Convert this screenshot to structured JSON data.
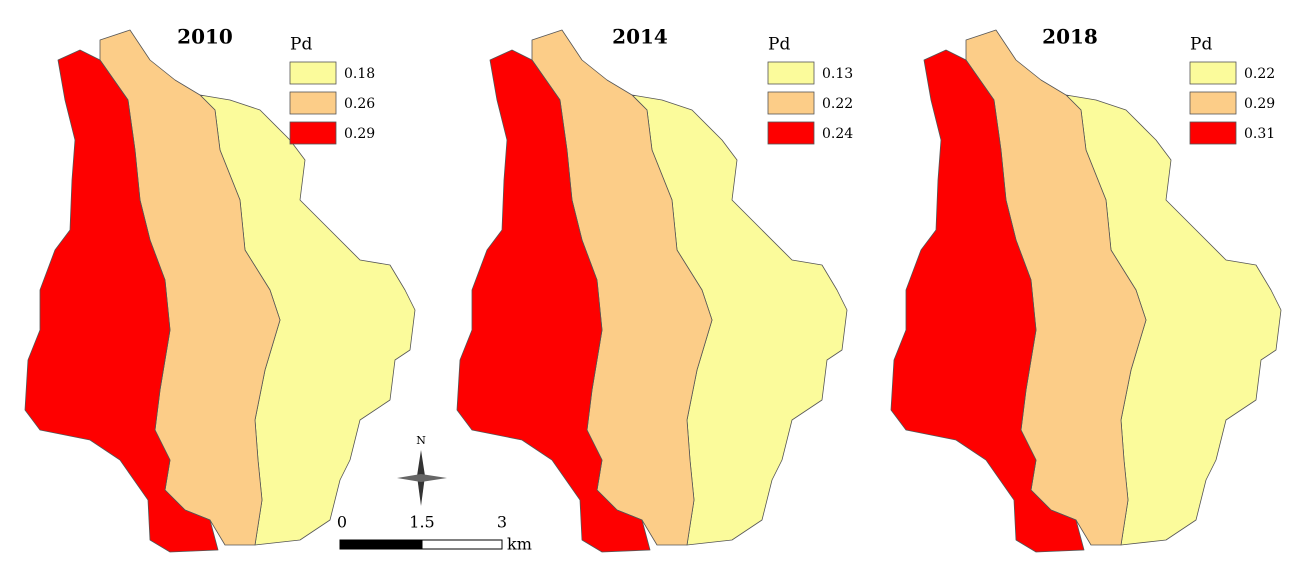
{
  "panels": [
    {
      "title": "2010",
      "legend": {
        "title": "Pd",
        "items": [
          {
            "label": "0.18",
            "color": "#fbfb9b"
          },
          {
            "label": "0.26",
            "color": "#fccd88"
          },
          {
            "label": "0.29",
            "color": "#fe0000"
          }
        ]
      }
    },
    {
      "title": "2014",
      "legend": {
        "title": "Pd",
        "items": [
          {
            "label": "0.13",
            "color": "#fbfb9b"
          },
          {
            "label": "0.22",
            "color": "#fccd88"
          },
          {
            "label": "0.24",
            "color": "#fe0000"
          }
        ]
      }
    },
    {
      "title": "2018",
      "legend": {
        "title": "Pd",
        "items": [
          {
            "label": "0.22",
            "color": "#fbfb9b"
          },
          {
            "label": "0.29",
            "color": "#fccd88"
          },
          {
            "label": "0.31",
            "color": "#fe0000"
          }
        ]
      }
    }
  ],
  "north": "N",
  "scale_bar": {
    "labels": [
      "0",
      "1.5",
      "3"
    ],
    "unit": "km"
  }
}
